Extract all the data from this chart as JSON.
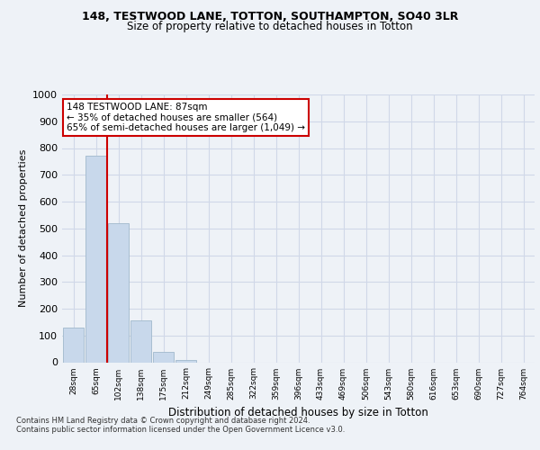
{
  "title1": "148, TESTWOOD LANE, TOTTON, SOUTHAMPTON, SO40 3LR",
  "title2": "Size of property relative to detached houses in Totton",
  "xlabel": "Distribution of detached houses by size in Totton",
  "ylabel": "Number of detached properties",
  "footer1": "Contains HM Land Registry data © Crown copyright and database right 2024.",
  "footer2": "Contains public sector information licensed under the Open Government Licence v3.0.",
  "categories": [
    "28sqm",
    "65sqm",
    "102sqm",
    "138sqm",
    "175sqm",
    "212sqm",
    "249sqm",
    "285sqm",
    "322sqm",
    "359sqm",
    "396sqm",
    "433sqm",
    "469sqm",
    "506sqm",
    "543sqm",
    "580sqm",
    "616sqm",
    "653sqm",
    "690sqm",
    "727sqm",
    "764sqm"
  ],
  "values": [
    128,
    770,
    520,
    155,
    38,
    10,
    0,
    0,
    0,
    0,
    0,
    0,
    0,
    0,
    0,
    0,
    0,
    0,
    0,
    0,
    0
  ],
  "bar_color": "#c8d8eb",
  "bar_edge_color": "#a0b8cc",
  "vline_x": 1.5,
  "vline_color": "#cc0000",
  "annotation_line1": "148 TESTWOOD LANE: 87sqm",
  "annotation_line2": "← 35% of detached houses are smaller (564)",
  "annotation_line3": "65% of semi-detached houses are larger (1,049) →",
  "annotation_box_color": "#ffffff",
  "annotation_box_edge": "#cc0000",
  "ylim": [
    0,
    1000
  ],
  "yticks": [
    0,
    100,
    200,
    300,
    400,
    500,
    600,
    700,
    800,
    900,
    1000
  ],
  "grid_color": "#d0d8e8",
  "background_color": "#eef2f7"
}
